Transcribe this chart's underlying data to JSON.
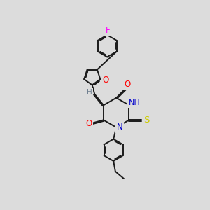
{
  "bg_color": "#dcdcdc",
  "bond_color": "#1a1a1a",
  "O_color": "#ff0000",
  "N_color": "#0000cc",
  "S_color": "#cccc00",
  "F_color": "#ff00ff",
  "H_color": "#708090",
  "lw": 1.4,
  "dbo": 0.055,
  "fs": 8.5,
  "xlim": [
    0,
    10
  ],
  "ylim": [
    0,
    11
  ]
}
